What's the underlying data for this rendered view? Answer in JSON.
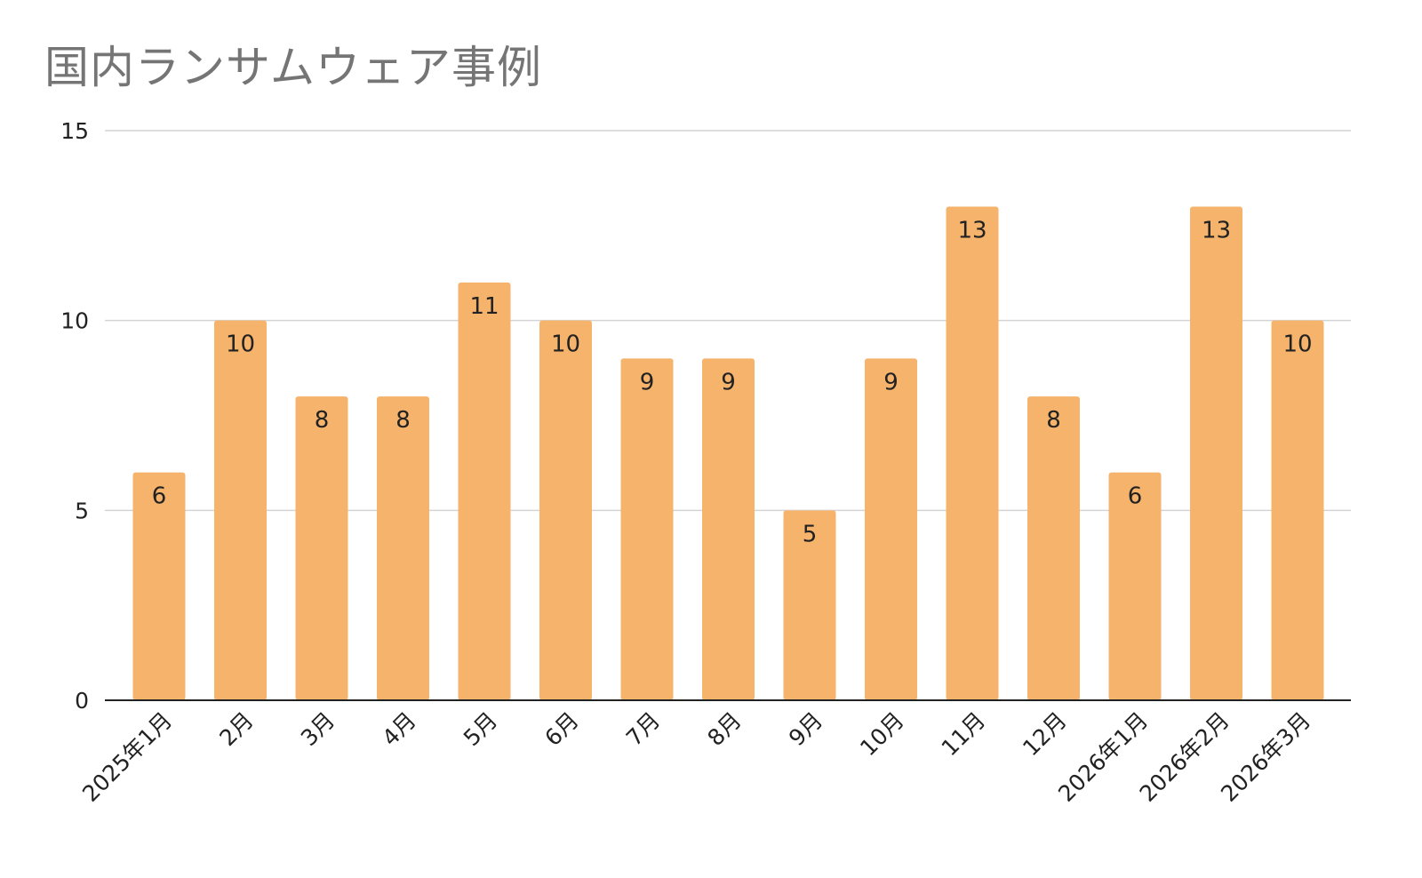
{
  "chart_data": {
    "type": "bar",
    "title": "国内ランサムウェア事例",
    "xlabel": "",
    "ylabel": "",
    "categories": [
      "2025年1月",
      "2月",
      "3月",
      "4月",
      "5月",
      "6月",
      "7月",
      "8月",
      "9月",
      "10月",
      "11月",
      "12月",
      "2026年1月",
      "2026年2月",
      "2026年3月"
    ],
    "values": [
      6,
      10,
      8,
      8,
      11,
      10,
      9,
      9,
      5,
      9,
      13,
      8,
      6,
      13,
      10
    ],
    "ylim": [
      0,
      15
    ],
    "yticks": [
      0,
      5,
      10,
      15
    ],
    "grid": true,
    "legend": "none",
    "data_labels": true,
    "bar_color": "#f5b36c",
    "grid_color": "#d4d4d4",
    "axis_color": "#222222"
  }
}
